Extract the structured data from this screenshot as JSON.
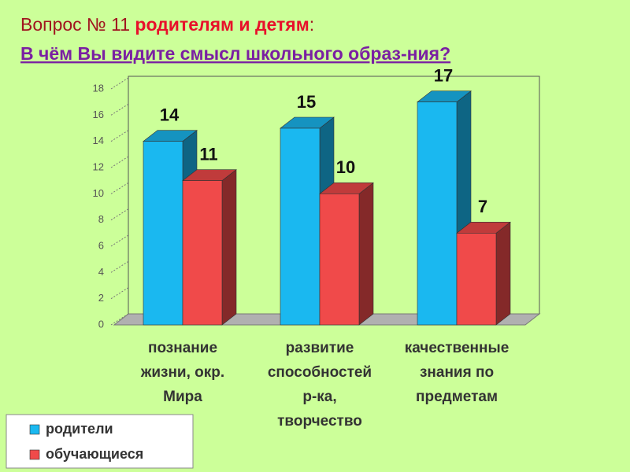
{
  "chart_data": {
    "type": "bar3d",
    "title": {
      "lead": "Вопрос № 11",
      "emphasis": "родителям и детям",
      "tail": ":"
    },
    "subtitle": "В чём Вы видите смысл школьного образ-ния?",
    "categories": [
      [
        "познание",
        "жизни, окр.",
        "Мира"
      ],
      [
        "развитие",
        "способностей",
        "р-ка,",
        "творчество"
      ],
      [
        "качественные",
        "знания по",
        "предметам"
      ]
    ],
    "series": [
      {
        "name": "родители",
        "color": "#1ab8f0",
        "values": [
          14,
          15,
          17
        ]
      },
      {
        "name": "обучающиеся",
        "color": "#f04a4a",
        "values": [
          11,
          10,
          7
        ]
      }
    ],
    "ylim": [
      0,
      18
    ],
    "yticks": [
      0,
      2,
      4,
      6,
      8,
      10,
      12,
      14,
      16,
      18
    ],
    "legend": "bottom-left"
  }
}
